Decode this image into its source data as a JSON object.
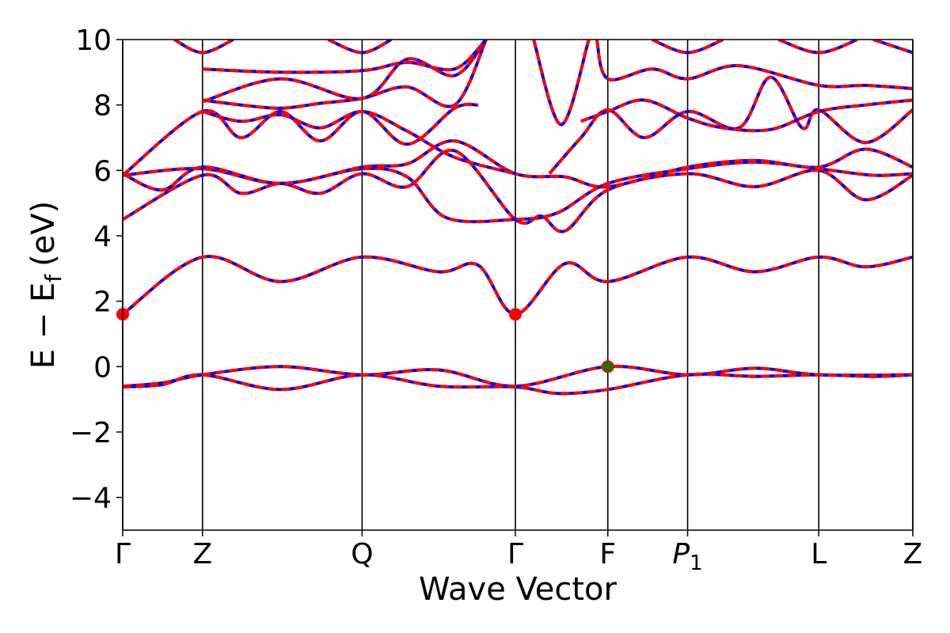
{
  "chart_data": {
    "type": "line",
    "title": "",
    "xlabel": "Wave Vector",
    "ylabel": "E − E",
    "ylabel_subscript": "f",
    "ylabel_unit": "(eV)",
    "ylim": [
      -5,
      10
    ],
    "yticks": [
      -4,
      -2,
      0,
      2,
      4,
      6,
      8,
      10
    ],
    "ytick_labels": [
      "−4",
      "−2",
      "0",
      "2",
      "4",
      "6",
      "8",
      "10"
    ],
    "xlim": [
      0,
      1
    ],
    "kpoints": [
      {
        "label": "Γ",
        "x": 0.0
      },
      {
        "label": "Z",
        "x": 0.101
      },
      {
        "label": "Q",
        "x": 0.303
      },
      {
        "label": "Γ",
        "x": 0.497
      },
      {
        "label": "F",
        "x": 0.614
      },
      {
        "label": "P",
        "sub": "1",
        "x": 0.715
      },
      {
        "label": "L",
        "x": 0.881
      },
      {
        "label": "Z",
        "x": 1.0
      }
    ],
    "grid": false,
    "line_colors": {
      "reference": "#0000ff",
      "overlay": "#ff0000"
    },
    "series": [
      {
        "values": [
          [
            0,
            -0.6
          ],
          [
            0.05,
            -0.5
          ],
          [
            0.101,
            -0.25
          ],
          [
            0.2,
            0
          ],
          [
            0.303,
            -0.25
          ],
          [
            0.4,
            -0.1
          ],
          [
            0.497,
            -0.6
          ],
          [
            0.614,
            0
          ],
          [
            0.715,
            -0.25
          ],
          [
            0.8,
            -0.05
          ],
          [
            0.881,
            -0.25
          ],
          [
            1.0,
            -0.25
          ]
        ]
      },
      {
        "values": [
          [
            0,
            -0.62
          ],
          [
            0.05,
            -0.55
          ],
          [
            0.101,
            -0.25
          ],
          [
            0.2,
            -0.7
          ],
          [
            0.303,
            -0.25
          ],
          [
            0.4,
            -0.6
          ],
          [
            0.497,
            -0.62
          ],
          [
            0.55,
            -0.82
          ],
          [
            0.614,
            -0.7
          ],
          [
            0.715,
            -0.25
          ],
          [
            0.8,
            -0.3
          ],
          [
            0.881,
            -0.25
          ],
          [
            0.95,
            -0.3
          ],
          [
            1.0,
            -0.25
          ]
        ]
      },
      {
        "values": [
          [
            0,
            1.6
          ],
          [
            0.101,
            3.35
          ],
          [
            0.2,
            2.6
          ],
          [
            0.303,
            3.35
          ],
          [
            0.4,
            2.9
          ],
          [
            0.45,
            3.1
          ],
          [
            0.497,
            1.6
          ],
          [
            0.56,
            3.15
          ],
          [
            0.614,
            2.6
          ],
          [
            0.715,
            3.35
          ],
          [
            0.8,
            2.9
          ],
          [
            0.881,
            3.35
          ],
          [
            0.94,
            3.05
          ],
          [
            1.0,
            3.35
          ]
        ]
      },
      {
        "values": [
          [
            0,
            4.5
          ],
          [
            0.101,
            5.85
          ],
          [
            0.15,
            5.3
          ],
          [
            0.2,
            5.6
          ],
          [
            0.25,
            5.3
          ],
          [
            0.303,
            5.9
          ],
          [
            0.36,
            5.5
          ],
          [
            0.42,
            6.6
          ],
          [
            0.497,
            4.5
          ],
          [
            0.53,
            4.6
          ],
          [
            0.56,
            4.15
          ],
          [
            0.614,
            5.4
          ],
          [
            0.715,
            5.9
          ],
          [
            0.8,
            5.5
          ],
          [
            0.881,
            6.0
          ],
          [
            0.94,
            5.1
          ],
          [
            1.0,
            5.85
          ]
        ]
      },
      {
        "values": [
          [
            0,
            5.85
          ],
          [
            0.101,
            6.05
          ],
          [
            0.2,
            5.6
          ],
          [
            0.303,
            6.05
          ],
          [
            0.36,
            5.8
          ],
          [
            0.41,
            4.55
          ],
          [
            0.497,
            4.5
          ],
          [
            0.55,
            4.7
          ],
          [
            0.614,
            5.6
          ],
          [
            0.715,
            6.05
          ],
          [
            0.8,
            6.25
          ],
          [
            0.881,
            6.05
          ],
          [
            0.95,
            5.85
          ],
          [
            1.0,
            5.9
          ]
        ]
      },
      {
        "values": [
          [
            0,
            5.9
          ],
          [
            0.05,
            5.4
          ],
          [
            0.101,
            6.1
          ],
          [
            0.2,
            5.6
          ],
          [
            0.303,
            6.1
          ],
          [
            0.36,
            6.2
          ],
          [
            0.42,
            6.9
          ],
          [
            0.497,
            5.9
          ],
          [
            0.56,
            5.8
          ],
          [
            0.614,
            5.5
          ],
          [
            0.715,
            6.1
          ],
          [
            0.8,
            6.3
          ],
          [
            0.881,
            6.1
          ],
          [
            0.94,
            6.65
          ],
          [
            1.0,
            6.1
          ]
        ]
      },
      {
        "values": [
          [
            0,
            5.85
          ],
          [
            0.101,
            7.8
          ],
          [
            0.15,
            7.0
          ],
          [
            0.2,
            7.8
          ],
          [
            0.25,
            6.9
          ],
          [
            0.303,
            7.8
          ],
          [
            0.36,
            6.8
          ],
          [
            0.42,
            7.9
          ],
          [
            0.45,
            8.0
          ]
        ]
      },
      {
        "values": [
          [
            0.101,
            7.8
          ],
          [
            0.15,
            7.5
          ],
          [
            0.2,
            7.7
          ],
          [
            0.25,
            7.3
          ],
          [
            0.303,
            7.8
          ],
          [
            0.36,
            7.2
          ],
          [
            0.42,
            6.4
          ],
          [
            0.497,
            5.9
          ]
        ]
      },
      {
        "values": [
          [
            0.54,
            5.9
          ],
          [
            0.58,
            7.0
          ],
          [
            0.614,
            7.85
          ],
          [
            0.66,
            7.0
          ],
          [
            0.715,
            7.8
          ],
          [
            0.78,
            7.3
          ],
          [
            0.82,
            8.85
          ],
          [
            0.86,
            7.3
          ],
          [
            0.881,
            7.85
          ],
          [
            0.94,
            6.85
          ],
          [
            1.0,
            7.85
          ]
        ]
      },
      {
        "values": [
          [
            0.101,
            8.15
          ],
          [
            0.15,
            8.0
          ],
          [
            0.2,
            7.9
          ],
          [
            0.25,
            8.05
          ],
          [
            0.303,
            8.2
          ],
          [
            0.36,
            8.55
          ],
          [
            0.42,
            8.0
          ],
          [
            0.46,
            10.0
          ]
        ]
      },
      {
        "values": [
          [
            0.58,
            7.5
          ],
          [
            0.614,
            7.8
          ],
          [
            0.66,
            8.15
          ],
          [
            0.715,
            7.6
          ],
          [
            0.76,
            7.3
          ],
          [
            0.82,
            7.25
          ],
          [
            0.881,
            7.8
          ],
          [
            0.94,
            8.0
          ],
          [
            1.0,
            8.15
          ]
        ]
      },
      {
        "values": [
          [
            0.101,
            8.1
          ],
          [
            0.2,
            8.8
          ],
          [
            0.303,
            8.2
          ],
          [
            0.36,
            9.4
          ],
          [
            0.42,
            8.9
          ],
          [
            0.46,
            10.0
          ]
        ]
      },
      {
        "values": [
          [
            0.6,
            10.0
          ],
          [
            0.614,
            8.8
          ],
          [
            0.67,
            9.1
          ],
          [
            0.715,
            8.8
          ],
          [
            0.78,
            9.2
          ],
          [
            0.881,
            8.6
          ],
          [
            0.94,
            8.6
          ],
          [
            1.0,
            8.5
          ]
        ]
      },
      {
        "values": [
          [
            0.101,
            9.1
          ],
          [
            0.2,
            9.0
          ],
          [
            0.303,
            9.05
          ],
          [
            0.36,
            9.3
          ],
          [
            0.42,
            9.1
          ],
          [
            0.46,
            10.0
          ]
        ]
      },
      {
        "values": [
          [
            0.065,
            10.0
          ],
          [
            0.101,
            9.6
          ],
          [
            0.14,
            10.0
          ]
        ]
      },
      {
        "values": [
          [
            0.26,
            10.0
          ],
          [
            0.303,
            9.6
          ],
          [
            0.34,
            10.0
          ]
        ]
      },
      {
        "values": [
          [
            0.52,
            10.0
          ],
          [
            0.555,
            7.4
          ],
          [
            0.59,
            10.0
          ]
        ]
      },
      {
        "values": [
          [
            0.67,
            10.0
          ],
          [
            0.715,
            9.6
          ],
          [
            0.76,
            10.0
          ]
        ]
      },
      {
        "values": [
          [
            0.83,
            10.0
          ],
          [
            0.881,
            9.6
          ],
          [
            0.93,
            10.0
          ]
        ]
      },
      {
        "values": [
          [
            0.95,
            10.0
          ],
          [
            1.0,
            9.6
          ]
        ]
      }
    ],
    "highlighted_points": [
      {
        "x": 0.0,
        "y": 1.6,
        "color": "#ff0000"
      },
      {
        "x": 0.497,
        "y": 1.6,
        "color": "#ff0000"
      },
      {
        "x": 0.614,
        "y": 0.0,
        "color": "#008000",
        "edge": "#ff0000"
      }
    ]
  }
}
